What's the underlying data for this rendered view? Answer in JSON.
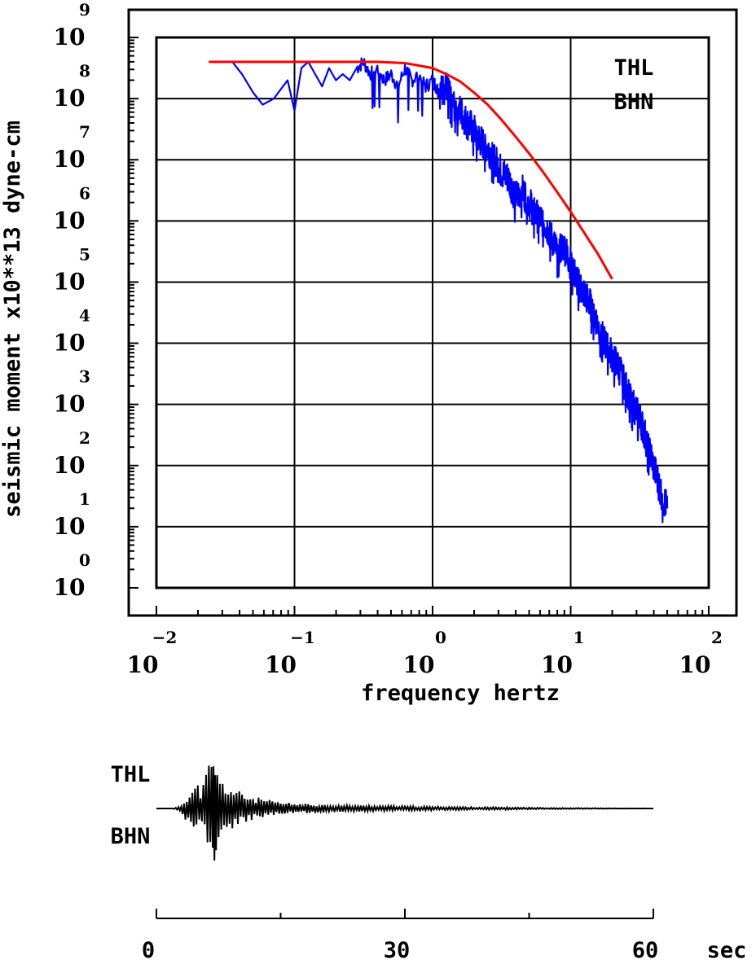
{
  "chart_data": [
    {
      "type": "line",
      "xlabel": "frequency  hertz",
      "ylabel": "seismic moment x10**13 dyne-cm",
      "x_scale": "log",
      "y_scale": "log",
      "x_tick_base": "10",
      "x_tick_exponents": [
        "−2",
        "−1",
        "0",
        "1",
        "2"
      ],
      "y_tick_base": "10",
      "y_tick_exponents": [
        "0",
        "1",
        "2",
        "3",
        "4",
        "5",
        "6",
        "7",
        "8",
        "9"
      ],
      "xlim_log10": [
        -2,
        2
      ],
      "ylim_log10": [
        0,
        9
      ],
      "grid": true,
      "annotations": [
        "THL",
        "BHN"
      ],
      "colors": {
        "spectrum": "#0000ff",
        "fit": "#ff0000",
        "axes": "#000000"
      },
      "series": [
        {
          "role": "observed spectrum",
          "log10_freq": [
            -1.62,
            -1.45,
            -1.38,
            -1.3,
            -1.23,
            -1.15,
            -1.05,
            -1.0,
            -0.95,
            -0.9,
            -0.85,
            -0.8,
            -0.75,
            -0.7,
            -0.65,
            -0.6,
            -0.55,
            -0.5,
            -0.45,
            -0.4,
            -0.35,
            -0.3,
            -0.25,
            -0.2,
            -0.15,
            -0.1,
            -0.05,
            0.0,
            0.05,
            0.1,
            0.15,
            0.2,
            0.25,
            0.3,
            0.35,
            0.4,
            0.45,
            0.5,
            0.55,
            0.6,
            0.65,
            0.7,
            0.75,
            0.8,
            0.85,
            0.9,
            0.95,
            1.0,
            1.05,
            1.1,
            1.15,
            1.2,
            1.25,
            1.3,
            1.35,
            1.4,
            1.45,
            1.5,
            1.55,
            1.6,
            1.65,
            1.7
          ],
          "log10_moment": [
            8.6,
            8.6,
            8.4,
            8.1,
            7.9,
            8.0,
            8.3,
            7.8,
            8.5,
            8.6,
            8.4,
            8.2,
            8.5,
            8.3,
            8.4,
            8.3,
            8.5,
            8.6,
            8.4,
            8.5,
            8.3,
            8.4,
            8.2,
            8.5,
            8.3,
            8.4,
            8.2,
            8.3,
            8.1,
            8.2,
            7.9,
            7.8,
            7.6,
            7.5,
            7.3,
            7.2,
            7.0,
            6.8,
            6.7,
            6.4,
            6.5,
            6.3,
            6.1,
            6.0,
            5.8,
            5.5,
            5.6,
            5.3,
            5.0,
            4.8,
            4.6,
            4.3,
            4.0,
            3.8,
            3.6,
            3.3,
            3.0,
            2.8,
            2.4,
            2.0,
            1.6,
            1.3
          ]
        },
        {
          "role": "model fit",
          "log10_freq": [
            -1.62,
            -1.4,
            -1.2,
            -1.0,
            -0.8,
            -0.6,
            -0.4,
            -0.2,
            0.0,
            0.1,
            0.2,
            0.3,
            0.4,
            0.5,
            0.6,
            0.7,
            0.8,
            0.9,
            1.0,
            1.1,
            1.2,
            1.3
          ],
          "log10_moment": [
            8.6,
            8.6,
            8.6,
            8.6,
            8.6,
            8.6,
            8.6,
            8.58,
            8.5,
            8.4,
            8.28,
            8.1,
            7.9,
            7.65,
            7.38,
            7.1,
            6.8,
            6.48,
            6.15,
            5.8,
            5.45,
            5.05
          ]
        }
      ]
    },
    {
      "type": "line",
      "role": "seismogram",
      "label_top": "THL",
      "label_bottom": "BHN",
      "xlim": [
        0,
        60
      ],
      "x_unit": "sec",
      "tick_labels": [
        "0",
        "30",
        "60"
      ],
      "minor_ticks": [
        15,
        45
      ],
      "color": "#000000",
      "time_s": [
        0,
        2,
        3,
        3.5,
        4,
        4.5,
        5,
        5.5,
        6,
        6.5,
        6.8,
        7.0,
        7.2,
        7.5,
        8,
        8.5,
        9,
        9.5,
        10,
        11,
        12,
        13,
        14,
        15,
        17,
        19,
        21,
        23,
        25,
        27,
        29,
        31,
        33,
        35,
        37,
        39,
        41,
        43,
        45,
        47,
        49,
        51,
        53,
        55,
        57,
        59,
        60
      ],
      "amplitude": [
        0,
        0,
        0.05,
        0.2,
        -0.25,
        0.35,
        -0.4,
        0.3,
        -0.6,
        0.8,
        -0.7,
        1.0,
        -0.7,
        0.5,
        -0.45,
        0.4,
        -0.35,
        0.3,
        -0.28,
        0.22,
        -0.18,
        0.16,
        -0.12,
        0.1,
        -0.08,
        0.07,
        -0.06,
        0.05,
        -0.05,
        0.045,
        -0.04,
        0.035,
        -0.03,
        0.03,
        -0.025,
        0.02,
        -0.02,
        0.018,
        -0.015,
        0.012,
        -0.01,
        0.008,
        -0.006,
        0.004,
        -0.002,
        0.001,
        0
      ]
    }
  ]
}
